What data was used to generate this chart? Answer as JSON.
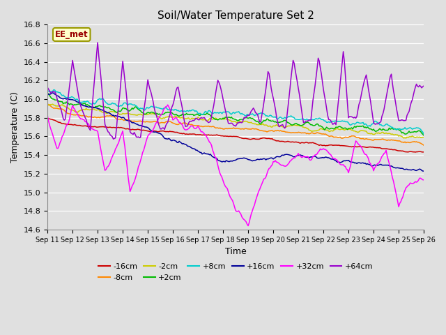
{
  "title": "Soil/Water Temperature Set 2",
  "xlabel": "Time",
  "ylabel": "Temperature (C)",
  "ylim": [
    14.6,
    16.8
  ],
  "background_color": "#e0e0e0",
  "annotation_text": "EE_met",
  "series": [
    {
      "label": "-16cm",
      "color": "#cc0000"
    },
    {
      "label": "-8cm",
      "color": "#ff8800"
    },
    {
      "label": "-2cm",
      "color": "#cccc00"
    },
    {
      "label": "+2cm",
      "color": "#00bb00"
    },
    {
      "label": "+8cm",
      "color": "#00cccc"
    },
    {
      "label": "+16cm",
      "color": "#000099"
    },
    {
      "label": "+32cm",
      "color": "#ff00ff"
    },
    {
      "label": "+64cm",
      "color": "#9900cc"
    }
  ],
  "x_tick_labels": [
    "Sep 11",
    "Sep 12",
    "Sep 13",
    "Sep 14",
    "Sep 15",
    "Sep 16",
    "Sep 17",
    "Sep 18",
    "Sep 19",
    "Sep 20",
    "Sep 21",
    "Sep 22",
    "Sep 23",
    "Sep 24",
    "Sep 25",
    "Sep 26"
  ],
  "legend_order": [
    "-16cm",
    "-8cm",
    "-2cm",
    "+2cm",
    "+8cm",
    "+16cm",
    "+32cm",
    "+64cm"
  ]
}
